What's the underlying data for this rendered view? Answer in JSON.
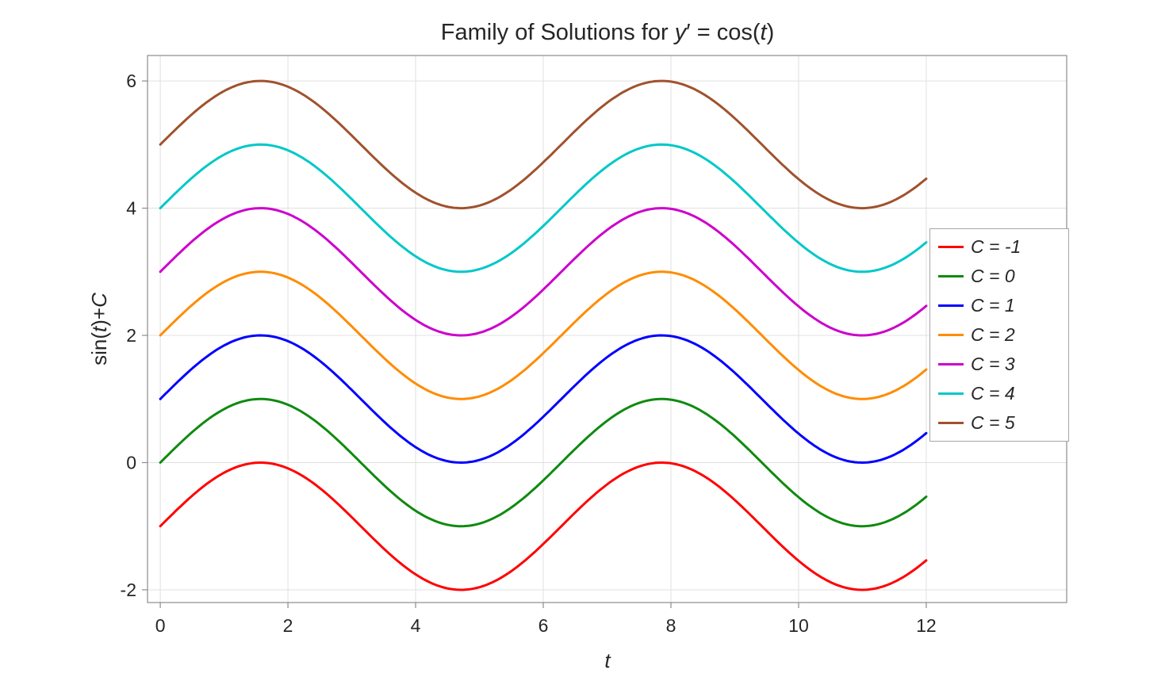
{
  "title": {
    "segments": [
      {
        "text": "Family of Solutions for ",
        "italic": false
      },
      {
        "text": "y",
        "italic": true
      },
      {
        "text": "′ = cos(",
        "italic": false
      },
      {
        "text": "t",
        "italic": true
      },
      {
        "text": ")",
        "italic": false
      }
    ]
  },
  "xlabel": {
    "segments": [
      {
        "text": "t",
        "italic": true
      }
    ]
  },
  "ylabel": {
    "segments": [
      {
        "text": "sin(",
        "italic": false
      },
      {
        "text": "t",
        "italic": true
      },
      {
        "text": ")+",
        "italic": false
      },
      {
        "text": "C",
        "italic": true
      }
    ]
  },
  "chart_data": {
    "type": "line",
    "title": "Family of Solutions for y′ = cos(t)",
    "xlabel": "t",
    "ylabel": "sin(t)+C",
    "function": "y = sin(t) + C",
    "t_range": [
      0,
      12
    ],
    "xlim": [
      -0.2,
      14.2
    ],
    "ylim": [
      -2.2,
      6.4
    ],
    "xticks": [
      0,
      2,
      4,
      6,
      8,
      10,
      12
    ],
    "yticks": [
      -2,
      0,
      2,
      4,
      6
    ],
    "grid": true,
    "legend_position": "northeast-inside",
    "series": [
      {
        "name": "C = -1",
        "C": -1,
        "color": "#ff0000"
      },
      {
        "name": "C = 0",
        "C": 0,
        "color": "#0f8a0f"
      },
      {
        "name": "C = 1",
        "C": 1,
        "color": "#0000ff"
      },
      {
        "name": "C = 2",
        "C": 2,
        "color": "#ff8c00"
      },
      {
        "name": "C = 3",
        "C": 3,
        "color": "#cc00cc"
      },
      {
        "name": "C = 4",
        "C": 4,
        "color": "#00c8c8"
      },
      {
        "name": "C = 5",
        "C": 5,
        "color": "#a0522d"
      }
    ]
  }
}
